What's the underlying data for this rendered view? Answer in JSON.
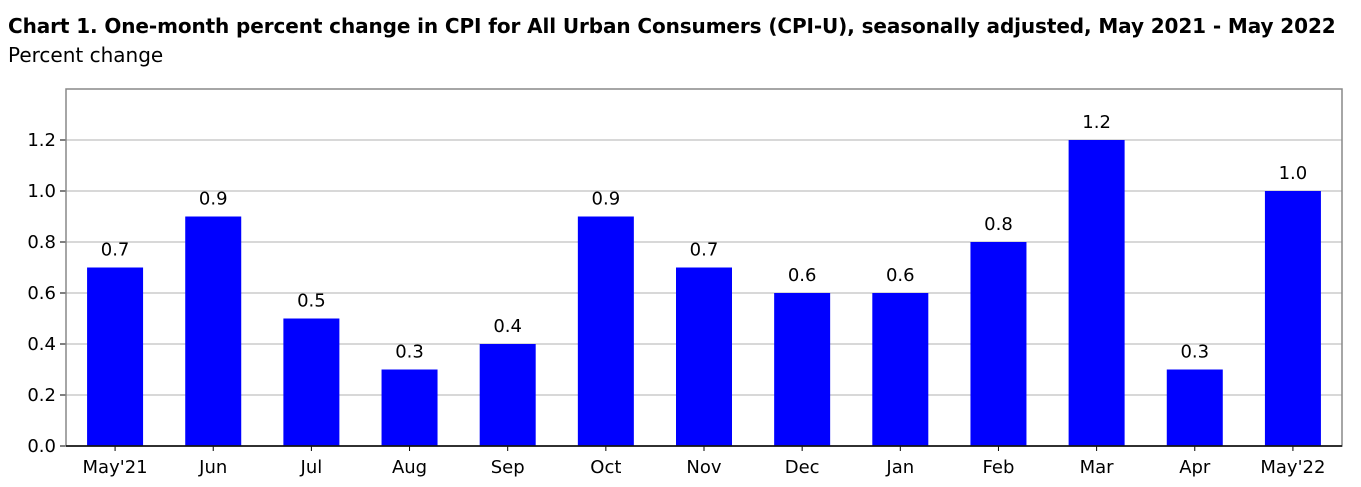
{
  "title": "Chart 1. One-month percent change in CPI for All Urban Consumers (CPI-U), seasonally adjusted, May 2021 - May 2022",
  "subtitle": "Percent change",
  "chart_data": {
    "type": "bar",
    "title": "Chart 1. One-month percent change in CPI for All Urban Consumers (CPI-U), seasonally adjusted, May 2021 - May 2022",
    "ylabel": "Percent change",
    "categories": [
      "May'21",
      "Jun",
      "Jul",
      "Aug",
      "Sep",
      "Oct",
      "Nov",
      "Dec",
      "Jan",
      "Feb",
      "Mar",
      "Apr",
      "May'22"
    ],
    "values": [
      0.7,
      0.9,
      0.5,
      0.3,
      0.4,
      0.9,
      0.7,
      0.6,
      0.6,
      0.8,
      1.2,
      0.3,
      1.0
    ],
    "data_labels": [
      "0.7",
      "0.9",
      "0.5",
      "0.3",
      "0.4",
      "0.9",
      "0.7",
      "0.6",
      "0.6",
      "0.8",
      "1.2",
      "0.3",
      "1.0"
    ],
    "yticks": [
      "0.0",
      "0.2",
      "0.4",
      "0.6",
      "0.8",
      "1.0",
      "1.2"
    ],
    "ylim": [
      0,
      1.4
    ],
    "grid": true,
    "bar_color": "#0000ff"
  }
}
